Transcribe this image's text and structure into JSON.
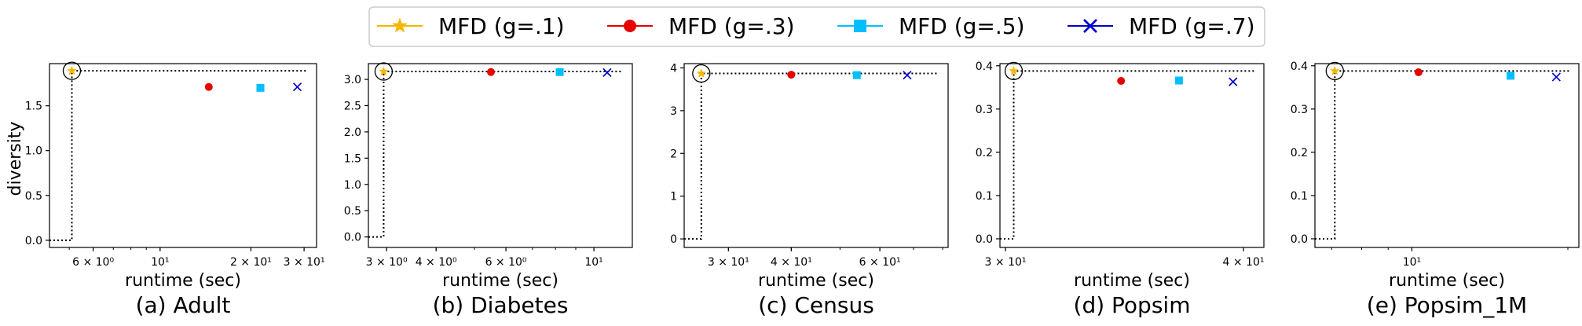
{
  "legend": {
    "placement": "top-center",
    "entries": [
      {
        "label": "MFD (g=.1)",
        "color": "#f5b800",
        "marker": "star"
      },
      {
        "label": "MFD (g=.3)",
        "color": "#e60000",
        "marker": "circle"
      },
      {
        "label": "MFD (g=.5)",
        "color": "#00bfff",
        "marker": "square"
      },
      {
        "label": "MFD (g=.7)",
        "color": "#0000cc",
        "marker": "x"
      }
    ]
  },
  "shared_ylabel": "diversity",
  "chart_data": [
    {
      "type": "scatter",
      "caption": "(a) Adult",
      "xlabel": "runtime (sec)",
      "ylabel": "diversity",
      "xscale": "log",
      "xlim": [
        4.3,
        33
      ],
      "ylim": [
        -0.08,
        1.97
      ],
      "xticks": [
        {
          "value": 6,
          "label": "6 × 10⁰"
        },
        {
          "value": 10,
          "label": "10¹"
        },
        {
          "value": 20,
          "label": "2 × 10¹"
        },
        {
          "value": 30,
          "label": "3 × 10¹"
        }
      ],
      "yticks": [
        {
          "value": 0,
          "label": "0.0"
        },
        {
          "value": 0.5,
          "label": "0.5"
        },
        {
          "value": 1.0,
          "label": "1.0"
        },
        {
          "value": 1.5,
          "label": "1.5"
        }
      ],
      "series": [
        {
          "name": "MFD (g=.1)",
          "points": [
            {
              "x": 5.1,
              "y": 1.89
            }
          ]
        },
        {
          "name": "MFD (g=.3)",
          "points": [
            {
              "x": 14.5,
              "y": 1.71
            }
          ]
        },
        {
          "name": "MFD (g=.5)",
          "points": [
            {
              "x": 21.5,
              "y": 1.7
            }
          ]
        },
        {
          "name": "MFD (g=.7)",
          "points": [
            {
              "x": 28.5,
              "y": 1.71
            }
          ]
        }
      ],
      "reference_point": {
        "x": 5.1,
        "y": 1.89
      },
      "grid": false
    },
    {
      "type": "scatter",
      "caption": "(b) Diabetes",
      "xlabel": "runtime (sec)",
      "ylabel": "",
      "xscale": "log",
      "xlim": [
        2.7,
        12.5
      ],
      "ylim": [
        -0.2,
        3.3
      ],
      "xticks": [
        {
          "value": 3,
          "label": "3 × 10⁰"
        },
        {
          "value": 4,
          "label": "4 × 10⁰"
        },
        {
          "value": 6,
          "label": "6 × 10⁰"
        },
        {
          "value": 10,
          "label": "10¹"
        }
      ],
      "yticks": [
        {
          "value": 0,
          "label": "0.0"
        },
        {
          "value": 0.5,
          "label": "0.5"
        },
        {
          "value": 1.0,
          "label": "1.0"
        },
        {
          "value": 1.5,
          "label": "1.5"
        },
        {
          "value": 2.0,
          "label": "2.0"
        },
        {
          "value": 2.5,
          "label": "2.5"
        },
        {
          "value": 3.0,
          "label": "3.0"
        }
      ],
      "series": [
        {
          "name": "MFD (g=.1)",
          "points": [
            {
              "x": 2.95,
              "y": 3.15
            }
          ]
        },
        {
          "name": "MFD (g=.3)",
          "points": [
            {
              "x": 5.5,
              "y": 3.14
            }
          ]
        },
        {
          "name": "MFD (g=.5)",
          "points": [
            {
              "x": 8.2,
              "y": 3.14
            }
          ]
        },
        {
          "name": "MFD (g=.7)",
          "points": [
            {
              "x": 10.8,
              "y": 3.13
            }
          ]
        }
      ],
      "reference_point": {
        "x": 2.95,
        "y": 3.15
      },
      "grid": false
    },
    {
      "type": "scatter",
      "caption": "(c) Census",
      "xlabel": "runtime (sec)",
      "ylabel": "",
      "xscale": "log",
      "xlim": [
        24.5,
        82
      ],
      "ylim": [
        -0.2,
        4.1
      ],
      "xticks": [
        {
          "value": 30,
          "label": "3 × 10¹"
        },
        {
          "value": 40,
          "label": "4 × 10¹"
        },
        {
          "value": 60,
          "label": "6 × 10¹"
        }
      ],
      "yticks": [
        {
          "value": 0,
          "label": "0"
        },
        {
          "value": 1,
          "label": "1"
        },
        {
          "value": 2,
          "label": "2"
        },
        {
          "value": 3,
          "label": "3"
        },
        {
          "value": 4,
          "label": "4"
        }
      ],
      "series": [
        {
          "name": "MFD (g=.1)",
          "points": [
            {
              "x": 26.5,
              "y": 3.87
            }
          ]
        },
        {
          "name": "MFD (g=.3)",
          "points": [
            {
              "x": 40,
              "y": 3.84
            }
          ]
        },
        {
          "name": "MFD (g=.5)",
          "points": [
            {
              "x": 54,
              "y": 3.83
            }
          ]
        },
        {
          "name": "MFD (g=.7)",
          "points": [
            {
              "x": 68,
              "y": 3.83
            }
          ]
        }
      ],
      "reference_point": {
        "x": 26.5,
        "y": 3.87
      },
      "grid": false
    },
    {
      "type": "scatter",
      "caption": "(d) Popsim",
      "xlabel": "runtime (sec)",
      "ylabel": "",
      "xscale": "log",
      "xlim": [
        29.8,
        41
      ],
      "ylim": [
        -0.02,
        0.405
      ],
      "xticks": [
        {
          "value": 30,
          "label": "3 × 10¹"
        },
        {
          "value": 40,
          "label": "4 × 10¹"
        }
      ],
      "yticks": [
        {
          "value": 0,
          "label": "0.0"
        },
        {
          "value": 0.1,
          "label": "0.1"
        },
        {
          "value": 0.2,
          "label": "0.2"
        },
        {
          "value": 0.3,
          "label": "0.3"
        },
        {
          "value": 0.4,
          "label": "0.4"
        }
      ],
      "series": [
        {
          "name": "MFD (g=.1)",
          "points": [
            {
              "x": 30.3,
              "y": 0.388
            }
          ]
        },
        {
          "name": "MFD (g=.3)",
          "points": [
            {
              "x": 34.5,
              "y": 0.365
            }
          ]
        },
        {
          "name": "MFD (g=.5)",
          "points": [
            {
              "x": 37.0,
              "y": 0.366
            }
          ]
        },
        {
          "name": "MFD (g=.7)",
          "points": [
            {
              "x": 39.5,
              "y": 0.363
            }
          ]
        }
      ],
      "reference_point": {
        "x": 30.3,
        "y": 0.388
      },
      "grid": false
    },
    {
      "type": "scatter",
      "caption": "(e) Popsim_1M",
      "xlabel": "runtime (sec)",
      "ylabel": "",
      "xscale": "log",
      "xlim": [
        6.5,
        21
      ],
      "ylim": [
        -0.02,
        0.405
      ],
      "xticks": [
        {
          "value": 10,
          "label": "10¹"
        }
      ],
      "yticks": [
        {
          "value": 0,
          "label": "0.0"
        },
        {
          "value": 0.1,
          "label": "0.1"
        },
        {
          "value": 0.2,
          "label": "0.2"
        },
        {
          "value": 0.3,
          "label": "0.3"
        },
        {
          "value": 0.4,
          "label": "0.4"
        }
      ],
      "series": [
        {
          "name": "MFD (g=.1)",
          "points": [
            {
              "x": 7.1,
              "y": 0.388
            }
          ]
        },
        {
          "name": "MFD (g=.3)",
          "points": [
            {
              "x": 10.3,
              "y": 0.385
            }
          ]
        },
        {
          "name": "MFD (g=.5)",
          "points": [
            {
              "x": 15.5,
              "y": 0.377
            }
          ]
        },
        {
          "name": "MFD (g=.7)",
          "points": [
            {
              "x": 19.0,
              "y": 0.374
            }
          ]
        }
      ],
      "reference_point": {
        "x": 7.1,
        "y": 0.388
      },
      "grid": false
    }
  ]
}
